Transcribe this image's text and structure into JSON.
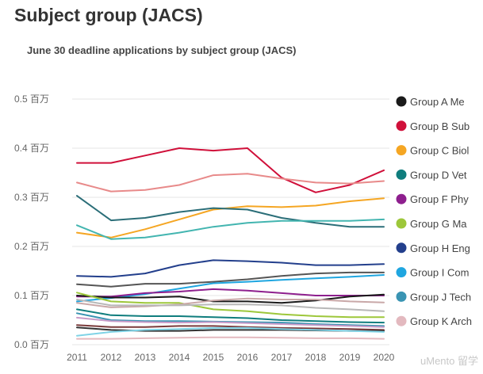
{
  "header": {
    "title": "Subject group (JACS)"
  },
  "watermark": "uMento 留学",
  "chart_data": {
    "type": "line",
    "title": "June 30 deadline applications by subject group (JACS)",
    "xlabel": "",
    "ylabel": "",
    "x": [
      "2011",
      "2012",
      "2013",
      "2014",
      "2015",
      "2016",
      "2017",
      "2018",
      "2019",
      "2020"
    ],
    "x_tick_labels": [
      "2011",
      "2012",
      "2013",
      "2014",
      "2015",
      "2016",
      "2017",
      "2018",
      "2019",
      "2020"
    ],
    "ylim": [
      0,
      0.5
    ],
    "y_ticks": [
      {
        "value": 0.0,
        "label": "0.0 百万"
      },
      {
        "value": 0.1,
        "label": "0.1 百万"
      },
      {
        "value": 0.2,
        "label": "0.2 百万"
      },
      {
        "value": 0.3,
        "label": "0.3 百万"
      },
      {
        "value": 0.4,
        "label": "0.4 百万"
      },
      {
        "value": 0.5,
        "label": "0.5 百万"
      }
    ],
    "grid": true,
    "legend_position": "right",
    "legend": [
      {
        "label": "Group A Me",
        "color": "#1a1a1a"
      },
      {
        "label": "Group B Sub",
        "color": "#d0103a"
      },
      {
        "label": "Group C Biol",
        "color": "#f5a623"
      },
      {
        "label": "Group D Vet",
        "color": "#0f7d7d"
      },
      {
        "label": "Group F Phy",
        "color": "#8e1f8e"
      },
      {
        "label": "Group G Ma",
        "color": "#9dc73a"
      },
      {
        "label": "Group H Eng",
        "color": "#233f8c"
      },
      {
        "label": "Group I Com",
        "color": "#1fa6e0"
      },
      {
        "label": "Group J Tech",
        "color": "#3a94b3"
      },
      {
        "label": "Group K Arch",
        "color": "#e3b9bf"
      }
    ],
    "series": [
      {
        "color": "#d0103a",
        "values": [
          0.37,
          0.37,
          0.385,
          0.4,
          0.395,
          0.4,
          0.34,
          0.31,
          0.325,
          0.355
        ]
      },
      {
        "color": "#e88a8a",
        "values": [
          0.33,
          0.312,
          0.315,
          0.325,
          0.345,
          0.348,
          0.338,
          0.33,
          0.328,
          0.333
        ]
      },
      {
        "color": "#f5a623",
        "values": [
          0.228,
          0.218,
          0.235,
          0.255,
          0.275,
          0.282,
          0.28,
          0.283,
          0.292,
          0.298
        ]
      },
      {
        "color": "#2b6e78",
        "values": [
          0.303,
          0.253,
          0.258,
          0.27,
          0.278,
          0.275,
          0.258,
          0.248,
          0.24,
          0.24
        ]
      },
      {
        "color": "#43b5b0",
        "values": [
          0.243,
          0.215,
          0.218,
          0.228,
          0.24,
          0.248,
          0.252,
          0.252,
          0.252,
          0.255
        ]
      },
      {
        "color": "#233f8c",
        "values": [
          0.14,
          0.138,
          0.145,
          0.162,
          0.172,
          0.17,
          0.167,
          0.162,
          0.162,
          0.164
        ]
      },
      {
        "color": "#555555",
        "values": [
          0.123,
          0.118,
          0.124,
          0.124,
          0.128,
          0.133,
          0.14,
          0.145,
          0.147,
          0.147
        ]
      },
      {
        "color": "#1fa6e0",
        "values": [
          0.088,
          0.095,
          0.103,
          0.114,
          0.125,
          0.128,
          0.132,
          0.135,
          0.138,
          0.142
        ]
      },
      {
        "color": "#8e1f8e",
        "values": [
          0.098,
          0.098,
          0.105,
          0.108,
          0.113,
          0.11,
          0.105,
          0.1,
          0.1,
          0.1
        ]
      },
      {
        "color": "#1a1a1a",
        "values": [
          0.1,
          0.096,
          0.096,
          0.098,
          0.088,
          0.088,
          0.085,
          0.09,
          0.098,
          0.102
        ]
      },
      {
        "color": "#9dc73a",
        "values": [
          0.106,
          0.088,
          0.085,
          0.085,
          0.072,
          0.068,
          0.062,
          0.058,
          0.056,
          0.056
        ]
      },
      {
        "color": "#c9a8a8",
        "values": [
          0.085,
          0.076,
          0.078,
          0.082,
          0.09,
          0.094,
          0.092,
          0.092,
          0.088,
          0.086
        ]
      },
      {
        "color": "#b8b8b8",
        "values": [
          0.092,
          0.08,
          0.08,
          0.08,
          0.082,
          0.082,
          0.08,
          0.075,
          0.072,
          0.068
        ]
      },
      {
        "color": "#0f7d7d",
        "values": [
          0.072,
          0.06,
          0.058,
          0.058,
          0.056,
          0.054,
          0.05,
          0.048,
          0.046,
          0.045
        ]
      },
      {
        "color": "#3a94b3",
        "values": [
          0.064,
          0.05,
          0.048,
          0.048,
          0.047,
          0.046,
          0.045,
          0.042,
          0.04,
          0.038
        ]
      },
      {
        "color": "#c89bc8",
        "values": [
          0.055,
          0.048,
          0.046,
          0.045,
          0.046,
          0.044,
          0.042,
          0.04,
          0.038,
          0.036
        ]
      },
      {
        "color": "#7a3a3a",
        "values": [
          0.04,
          0.036,
          0.036,
          0.038,
          0.038,
          0.036,
          0.034,
          0.033,
          0.032,
          0.03
        ]
      },
      {
        "color": "#333333",
        "values": [
          0.035,
          0.03,
          0.028,
          0.028,
          0.03,
          0.03,
          0.03,
          0.029,
          0.028,
          0.028
        ]
      },
      {
        "color": "#7fd3e6",
        "values": [
          0.018,
          0.026,
          0.03,
          0.032,
          0.034,
          0.034,
          0.032,
          0.03,
          0.028,
          0.026
        ]
      },
      {
        "color": "#e3b9bf",
        "values": [
          0.012,
          0.012,
          0.013,
          0.014,
          0.015,
          0.015,
          0.014,
          0.013,
          0.013,
          0.012
        ]
      }
    ]
  }
}
